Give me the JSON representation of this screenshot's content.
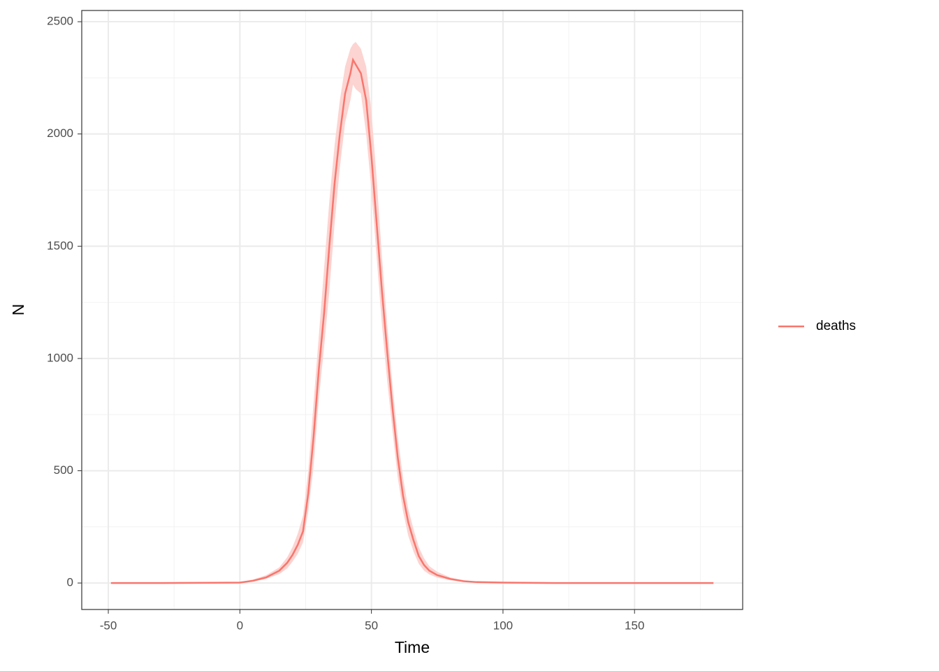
{
  "chart_data": {
    "type": "line",
    "x_label": "Time",
    "y_label": "N",
    "x": [
      -49,
      -30,
      -10,
      0,
      5,
      10,
      15,
      18,
      20,
      22,
      24,
      26,
      28,
      30,
      32,
      34,
      36,
      38,
      40,
      42,
      43,
      44,
      46,
      48,
      50,
      52,
      54,
      56,
      58,
      60,
      62,
      64,
      66,
      68,
      70,
      72,
      75,
      80,
      85,
      90,
      100,
      120,
      150,
      180
    ],
    "series": [
      {
        "name": "deaths",
        "color": "#f8766d",
        "ribbon_color": "#fcd4d1",
        "values": [
          0,
          0,
          1,
          2,
          10,
          25,
          55,
          90,
          125,
          170,
          230,
          400,
          650,
          950,
          1200,
          1500,
          1780,
          2000,
          2180,
          2270,
          2330,
          2310,
          2270,
          2150,
          1900,
          1600,
          1300,
          1030,
          780,
          560,
          390,
          270,
          190,
          120,
          80,
          55,
          35,
          18,
          8,
          4,
          2,
          0,
          0,
          0
        ],
        "upper": [
          0,
          0,
          2,
          4,
          15,
          35,
          70,
          115,
          160,
          220,
          300,
          500,
          800,
          1100,
          1400,
          1700,
          1950,
          2150,
          2300,
          2380,
          2400,
          2410,
          2380,
          2300,
          2100,
          1800,
          1450,
          1150,
          880,
          650,
          470,
          330,
          240,
          160,
          110,
          75,
          50,
          25,
          12,
          6,
          3,
          1,
          0,
          0
        ],
        "lower": [
          0,
          0,
          0,
          1,
          6,
          18,
          40,
          65,
          95,
          130,
          180,
          320,
          520,
          820,
          1050,
          1300,
          1600,
          1850,
          2050,
          2150,
          2220,
          2200,
          2180,
          2000,
          1750,
          1450,
          1150,
          900,
          680,
          470,
          320,
          210,
          140,
          85,
          55,
          38,
          24,
          12,
          5,
          2,
          1,
          0,
          0,
          0
        ]
      }
    ],
    "xlim": [
      -60.1,
      191.1
    ],
    "ylim": [
      -118,
      2550
    ],
    "xticks": [
      -50,
      0,
      50,
      100,
      150
    ],
    "yticks": [
      0,
      500,
      1000,
      1500,
      2000,
      2500
    ],
    "grid": true,
    "legend_position": "right"
  }
}
